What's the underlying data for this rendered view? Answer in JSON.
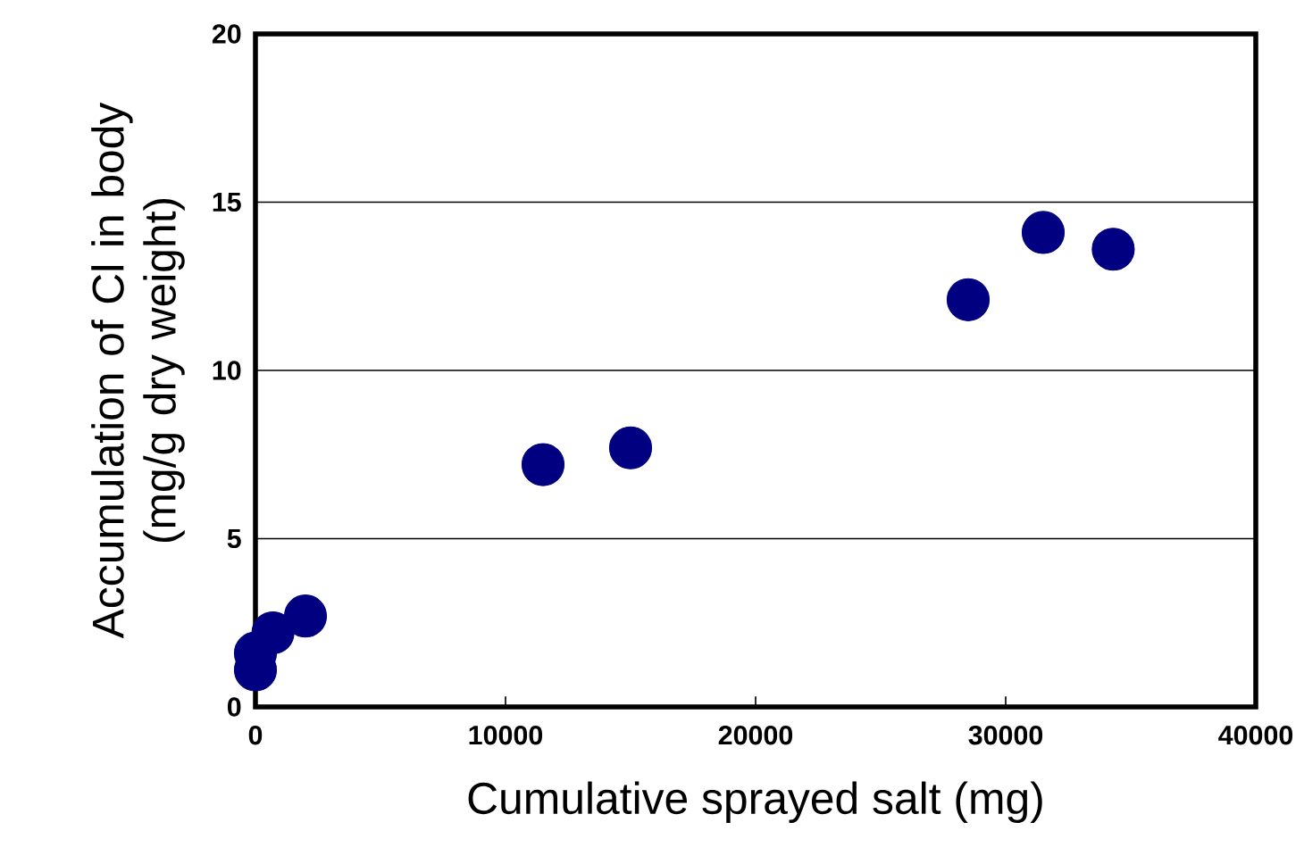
{
  "chart_data": {
    "type": "scatter",
    "xlabel": "Cumulative sprayed salt (mg)",
    "ylabel": "Accumulation of Cl in body\n(mg/g dry weight)",
    "x": [
      0,
      0,
      700,
      2000,
      11500,
      15000,
      28500,
      31500,
      34300
    ],
    "values": [
      1.1,
      1.6,
      2.2,
      2.7,
      7.2,
      7.7,
      12.1,
      14.1,
      13.6
    ],
    "color": "#000080",
    "marker": "circle",
    "grid": "y",
    "xlim": [
      0,
      40000
    ],
    "ylim": [
      0,
      20
    ],
    "xticks": [
      0,
      10000,
      20000,
      30000,
      40000
    ],
    "yticks": [
      0,
      5,
      10,
      15,
      20
    ]
  }
}
